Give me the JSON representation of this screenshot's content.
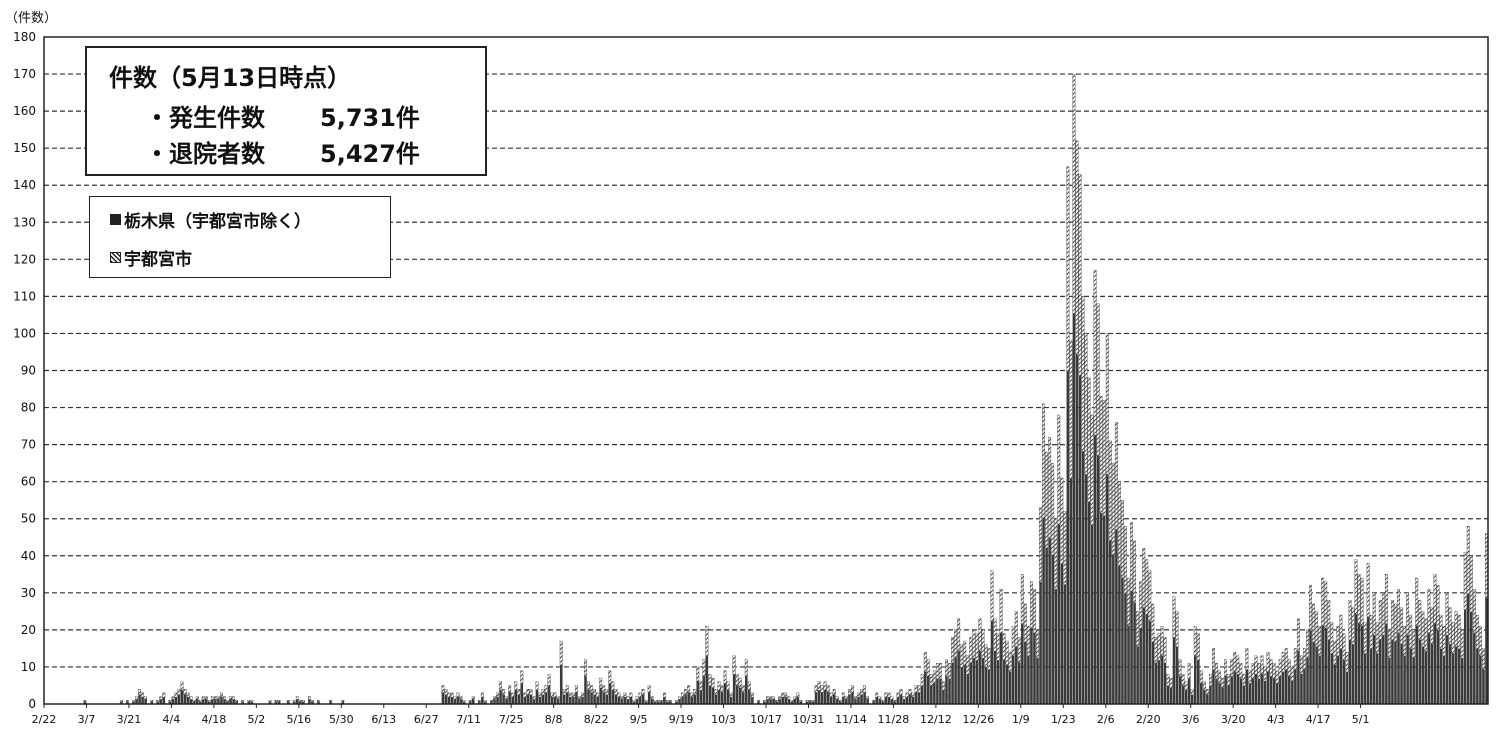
{
  "chart_data": {
    "type": "bar",
    "y_unit_label": "（件数）",
    "ylim": [
      0,
      180
    ],
    "y_ticks": [
      0,
      10,
      20,
      30,
      40,
      50,
      60,
      70,
      80,
      90,
      100,
      110,
      120,
      130,
      140,
      150,
      160,
      170,
      180
    ],
    "x_tick_labels": [
      "2/22",
      "3/7",
      "3/21",
      "4/4",
      "4/18",
      "5/2",
      "5/16",
      "5/30",
      "6/13",
      "6/27",
      "7/11",
      "7/25",
      "8/8",
      "8/22",
      "9/5",
      "9/19",
      "10/3",
      "10/17",
      "10/31",
      "11/14",
      "11/28",
      "12/12",
      "12/26",
      "1/9",
      "1/23",
      "2/6",
      "2/20",
      "3/6",
      "3/20",
      "4/3",
      "4/17",
      "5/1"
    ],
    "x_tick_interval_days": 14,
    "grid": "horizontal dashed",
    "stacked": true,
    "series": [
      {
        "name": "栃木県（宇都宮市除く）",
        "color": "#3a3a3a",
        "pattern": "solid"
      },
      {
        "name": "宇都宮市",
        "color": "#222222",
        "pattern": "hatched"
      }
    ],
    "daily_total_values": [
      0,
      0,
      0,
      0,
      0,
      0,
      0,
      0,
      0,
      0,
      0,
      0,
      0,
      1,
      0,
      0,
      0,
      0,
      0,
      0,
      0,
      0,
      0,
      0,
      0,
      1,
      0,
      1,
      0,
      1,
      2,
      4,
      3,
      2,
      0,
      1,
      0,
      1,
      2,
      3,
      0,
      1,
      2,
      3,
      4,
      6,
      4,
      3,
      2,
      1,
      2,
      1,
      2,
      2,
      1,
      2,
      2,
      2,
      3,
      2,
      1,
      2,
      2,
      1,
      0,
      1,
      0,
      1,
      1,
      0,
      0,
      0,
      0,
      0,
      1,
      0,
      1,
      1,
      0,
      0,
      1,
      0,
      1,
      2,
      1,
      1,
      0,
      2,
      1,
      0,
      1,
      0,
      0,
      0,
      1,
      0,
      0,
      0,
      1,
      0,
      0,
      0,
      0,
      0,
      0,
      0,
      0,
      0,
      0,
      0,
      0,
      0,
      0,
      0,
      0,
      0,
      0,
      0,
      0,
      0,
      0,
      0,
      0,
      0,
      0,
      0,
      0,
      0,
      0,
      0,
      0,
      5,
      4,
      3,
      3,
      2,
      3,
      2,
      1,
      0,
      1,
      2,
      0,
      1,
      3,
      1,
      0,
      1,
      2,
      3,
      6,
      4,
      2,
      5,
      3,
      6,
      4,
      9,
      3,
      4,
      4,
      2,
      6,
      3,
      4,
      5,
      8,
      3,
      3,
      2,
      17,
      4,
      5,
      3,
      3,
      5,
      2,
      3,
      12,
      6,
      5,
      4,
      3,
      7,
      5,
      4,
      9,
      6,
      4,
      3,
      2,
      3,
      2,
      3,
      1,
      2,
      3,
      4,
      1,
      5,
      2,
      1,
      1,
      1,
      3,
      1,
      1,
      0,
      1,
      2,
      3,
      4,
      5,
      3,
      4,
      10,
      6,
      12,
      21,
      8,
      7,
      4,
      6,
      5,
      9,
      6,
      3,
      13,
      8,
      7,
      5,
      12,
      6,
      3,
      0,
      1,
      0,
      1,
      2,
      2,
      2,
      1,
      2,
      3,
      3,
      2,
      1,
      2,
      3,
      1,
      0,
      1,
      1,
      1,
      5,
      6,
      5,
      6,
      5,
      3,
      4,
      2,
      1,
      3,
      2,
      4,
      5,
      2,
      3,
      4,
      5,
      2,
      0,
      1,
      3,
      2,
      1,
      3,
      3,
      2,
      1,
      3,
      4,
      2,
      3,
      4,
      3,
      5,
      5,
      8,
      14,
      12,
      8,
      9,
      11,
      11,
      6,
      12,
      11,
      18,
      20,
      23,
      16,
      17,
      13,
      18,
      20,
      19,
      23,
      20,
      16,
      15,
      36,
      23,
      19,
      31,
      19,
      17,
      14,
      21,
      25,
      18,
      35,
      27,
      21,
      33,
      31,
      20,
      53,
      81,
      68,
      72,
      65,
      50,
      78,
      61,
      52,
      145,
      98,
      170,
      152,
      143,
      110,
      100,
      88,
      78,
      117,
      108,
      83,
      82,
      100,
      71,
      65,
      76,
      60,
      55,
      48,
      34,
      49,
      44,
      25,
      33,
      42,
      39,
      36,
      27,
      18,
      19,
      21,
      18,
      8,
      7,
      29,
      25,
      12,
      8,
      6,
      11,
      4,
      21,
      19,
      9,
      6,
      4,
      8,
      15,
      11,
      9,
      7,
      12,
      8,
      12,
      14,
      13,
      11,
      8,
      15,
      9,
      11,
      13,
      11,
      13,
      10,
      14,
      12,
      11,
      9,
      12,
      14,
      15,
      12,
      10,
      15,
      23,
      13,
      15,
      20,
      32,
      27,
      25,
      21,
      34,
      33,
      28,
      22,
      17,
      21,
      24,
      19,
      14,
      28,
      26,
      39,
      35,
      34,
      22,
      38,
      24,
      30,
      22,
      28,
      30,
      35,
      20,
      28,
      27,
      31,
      26,
      21,
      30,
      24,
      20,
      34,
      28,
      25,
      23,
      31,
      26,
      35,
      32,
      24,
      21,
      30,
      26,
      22,
      25,
      24,
      20,
      41,
      48,
      40,
      31,
      24,
      21,
      15,
      46
    ]
  },
  "info_box": {
    "title": "件数（5月13日時点）",
    "lines": [
      {
        "label": "・発生件数",
        "value": "5,731件"
      },
      {
        "label": "・退院者数",
        "value": "5,427件"
      }
    ]
  },
  "legend": {
    "items": [
      "栃木県（宇都宮市除く）",
      "宇都宮市"
    ]
  }
}
